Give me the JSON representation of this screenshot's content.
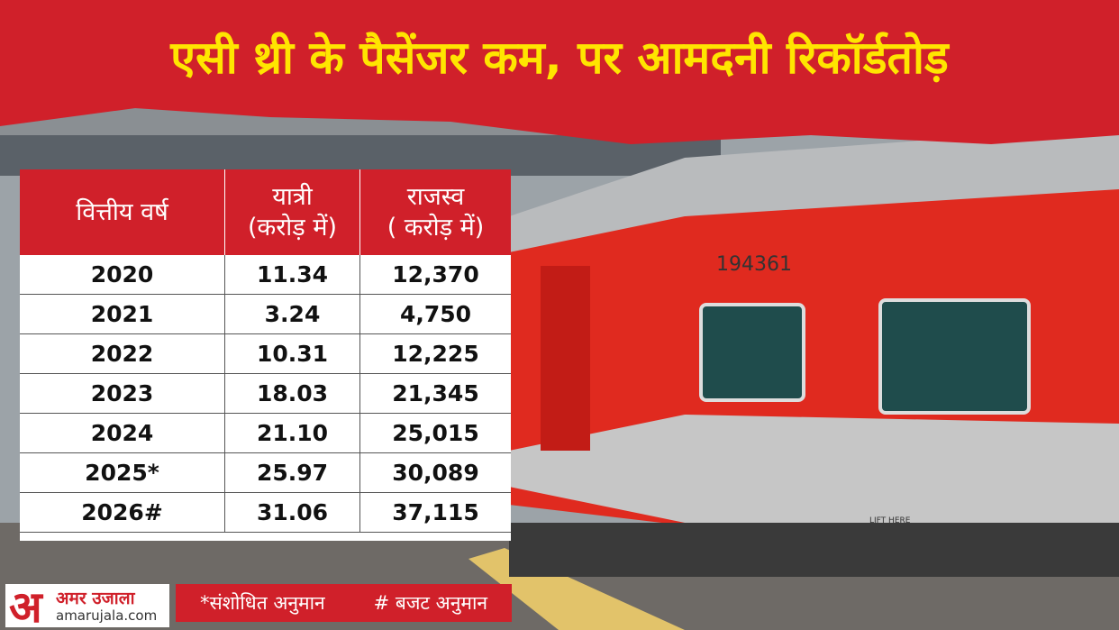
{
  "title": "एसी थ्री के पैसेंजर कम, पर आमदनी रिकॉर्डतोड़",
  "table": {
    "headers": [
      [
        "वित्तीय वर्ष"
      ],
      [
        "यात्री",
        "(करोड़ में)"
      ],
      [
        "राजस्व",
        "( करोड़ में)"
      ]
    ],
    "rows": [
      [
        "2020",
        "11.34",
        "12,370"
      ],
      [
        "2021",
        "3.24",
        "4,750"
      ],
      [
        "2022",
        "10.31",
        "12,225"
      ],
      [
        "2023",
        "18.03",
        "21,345"
      ],
      [
        "2024",
        "21.10",
        "25,015"
      ],
      [
        "2025*",
        "25.97",
        "30,089"
      ],
      [
        "2026#",
        "31.06",
        "37,115"
      ]
    ]
  },
  "footnotes": [
    "*संशोधित अनुमान",
    "# बजट अनुमान"
  ],
  "train_number": "194361",
  "train_marking": "LIFT HERE",
  "logo": {
    "mark": "अ",
    "name": "अमर उजाला",
    "site": "amarujala.com"
  }
}
